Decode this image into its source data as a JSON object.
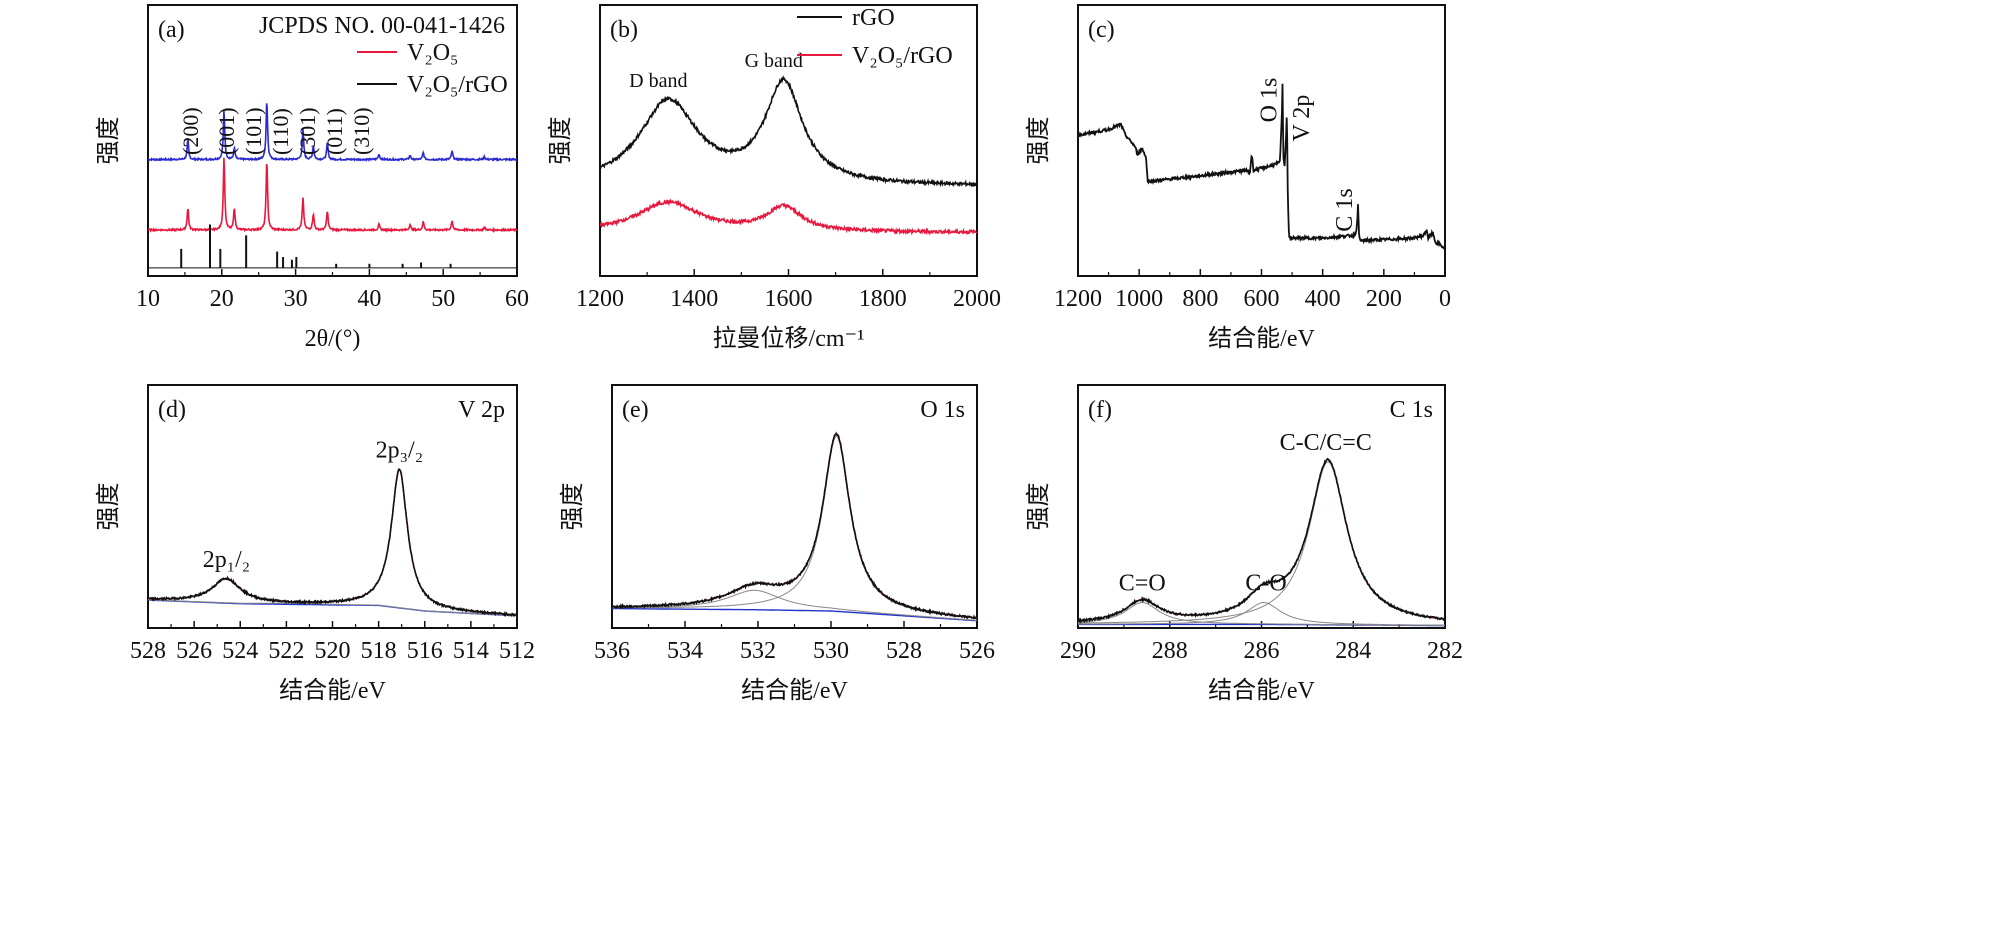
{
  "chart_data": [
    {
      "id": "a",
      "type": "line",
      "panel_label": "(a)",
      "xlabel": "2θ/(°)",
      "ylabel": "强度",
      "xlim": [
        10,
        60
      ],
      "xticks": [
        "10",
        "20",
        "30",
        "40",
        "50",
        "60"
      ],
      "legend": {
        "title": "JCPDS NO. 00-041-1426",
        "entries": [
          {
            "name": "V₂O₅",
            "color": "#e8173d"
          },
          {
            "name": "V₂O₅/rGO",
            "color": "#111111"
          }
        ],
        "placement": "top-right"
      },
      "annotations": [
        "(200)",
        "(001)",
        "(101)",
        "(110)",
        "(301)",
        "(011)",
        "(310)"
      ],
      "annotation_x": [
        15.4,
        20.3,
        21.7,
        26.1,
        31.0,
        32.4,
        34.3
      ],
      "series": [
        {
          "color": "#2a2ad0",
          "baseline": 0.43,
          "peaks": [
            [
              15.4,
              0.07
            ],
            [
              20.3,
              0.18
            ],
            [
              21.7,
              0.04
            ],
            [
              26.1,
              0.22
            ],
            [
              31.0,
              0.11
            ],
            [
              32.4,
              0.05
            ],
            [
              34.3,
              0.06
            ],
            [
              41.3,
              0.02
            ],
            [
              45.5,
              0.015
            ],
            [
              47.3,
              0.025
            ],
            [
              51.2,
              0.03
            ],
            [
              55.6,
              0.01
            ]
          ]
        },
        {
          "color": "#e8173d",
          "baseline": 0.17,
          "peaks": [
            [
              15.4,
              0.08
            ],
            [
              20.3,
              0.27
            ],
            [
              21.7,
              0.08
            ],
            [
              26.1,
              0.26
            ],
            [
              31.0,
              0.12
            ],
            [
              32.4,
              0.06
            ],
            [
              34.3,
              0.07
            ],
            [
              41.3,
              0.02
            ],
            [
              45.5,
              0.02
            ],
            [
              47.3,
              0.03
            ],
            [
              51.2,
              0.035
            ],
            [
              55.6,
              0.01
            ]
          ]
        },
        {
          "color": "#111111",
          "style": "sticks",
          "baseline": 0.03,
          "peaks": [
            [
              14.5,
              0.07
            ],
            [
              18.4,
              0.16
            ],
            [
              19.8,
              0.07
            ],
            [
              23.3,
              0.12
            ],
            [
              27.5,
              0.06
            ],
            [
              28.3,
              0.04
            ],
            [
              29.5,
              0.03
            ],
            [
              30.1,
              0.04
            ],
            [
              35.5,
              0.015
            ],
            [
              40.0,
              0.015
            ],
            [
              44.5,
              0.015
            ],
            [
              47.0,
              0.02
            ],
            [
              51.0,
              0.015
            ]
          ]
        }
      ]
    },
    {
      "id": "b",
      "type": "line",
      "panel_label": "(b)",
      "xlabel": "拉曼位移/cm⁻¹",
      "ylabel": "强度",
      "xlim": [
        1200,
        2000
      ],
      "xticks": [
        "1200",
        "1400",
        "1600",
        "1800",
        "2000"
      ],
      "legend": {
        "entries": [
          {
            "name": "rGO",
            "color": "#111111"
          },
          {
            "name": "V₂O₅/rGO",
            "color": "#e8173d"
          }
        ],
        "placement": "top-right"
      },
      "annotations": [
        "D band",
        "G band"
      ],
      "annotation_x": [
        1345,
        1590
      ],
      "series": [
        {
          "name": "rGO",
          "color": "#111111",
          "baseline": 0.33,
          "peaks": [
            [
              1345,
              0.31,
              75
            ],
            [
              1590,
              0.37,
              48
            ]
          ],
          "slope": 0.0
        },
        {
          "name": "V₂O₅/rGO",
          "color": "#e8173d",
          "baseline": 0.16,
          "peaks": [
            [
              1345,
              0.11,
              80
            ],
            [
              1590,
              0.09,
              45
            ]
          ],
          "slope": 0.0
        }
      ]
    },
    {
      "id": "c",
      "type": "line",
      "panel_label": "(c)",
      "xlabel": "结合能/eV",
      "ylabel": "强度",
      "xlim": [
        1200,
        0
      ],
      "xticks": [
        "1200",
        "1000",
        "800",
        "600",
        "400",
        "200",
        "0"
      ],
      "annotations": [
        "O 1s",
        "V 2p",
        "C 1s"
      ],
      "annotation_x": [
        531,
        517,
        284
      ],
      "series": [
        {
          "color": "#111111",
          "points": [
            [
              1200,
              0.52
            ],
            [
              1100,
              0.54
            ],
            [
              1060,
              0.56
            ],
            [
              1045,
              0.52
            ],
            [
              1030,
              0.5
            ],
            [
              1015,
              0.48
            ],
            [
              1005,
              0.45
            ],
            [
              990,
              0.47
            ],
            [
              978,
              0.44
            ],
            [
              972,
              0.35
            ],
            [
              960,
              0.35
            ],
            [
              800,
              0.37
            ],
            [
              650,
              0.39
            ],
            [
              638,
              0.38
            ],
            [
              632,
              0.45
            ],
            [
              626,
              0.39
            ],
            [
              560,
              0.41
            ],
            [
              540,
              0.42
            ],
            [
              533,
              0.6
            ],
            [
              531,
              0.74
            ],
            [
              529,
              0.45
            ],
            [
              525,
              0.4
            ],
            [
              520,
              0.5
            ],
            [
              517,
              0.61
            ],
            [
              514,
              0.3
            ],
            [
              510,
              0.14
            ],
            [
              400,
              0.14
            ],
            [
              300,
              0.15
            ],
            [
              290,
              0.16
            ],
            [
              286,
              0.22
            ],
            [
              284,
              0.29
            ],
            [
              282,
              0.16
            ],
            [
              278,
              0.13
            ],
            [
              100,
              0.14
            ],
            [
              70,
              0.15
            ],
            [
              60,
              0.17
            ],
            [
              55,
              0.14
            ],
            [
              40,
              0.16
            ],
            [
              30,
              0.12
            ],
            [
              20,
              0.12
            ],
            [
              0,
              0.1
            ]
          ]
        }
      ]
    },
    {
      "id": "d",
      "type": "line",
      "panel_label": "(d)",
      "title": "V 2p",
      "xlabel": "结合能/eV",
      "ylabel": "强度",
      "xlim": [
        528,
        512
      ],
      "xticks": [
        "528",
        "526",
        "524",
        "522",
        "520",
        "518",
        "516",
        "514",
        "512"
      ],
      "annotations": [
        "2p₁/₂",
        "2p₃/₂"
      ],
      "annotation_x": [
        524.6,
        517.1
      ],
      "background": [
        [
          528,
          0.115
        ],
        [
          524,
          0.1
        ],
        [
          520,
          0.095
        ],
        [
          518,
          0.093
        ],
        [
          516,
          0.07
        ],
        [
          512,
          0.05
        ]
      ],
      "peaks": [
        [
          524.6,
          0.1,
          0.75
        ],
        [
          517.1,
          0.57,
          0.42
        ]
      ],
      "colors": {
        "data": "#111111",
        "fit": "#888888",
        "background": "#2233cc",
        "envelope": "#e8173d"
      }
    },
    {
      "id": "e",
      "type": "line",
      "panel_label": "(e)",
      "title": "O 1s",
      "xlabel": "结合能/eV",
      "ylabel": "强度",
      "xlim": [
        536,
        526
      ],
      "xticks": [
        "536",
        "534",
        "532",
        "530",
        "528",
        "526"
      ],
      "background": [
        [
          536,
          0.08
        ],
        [
          532,
          0.075
        ],
        [
          530,
          0.07
        ],
        [
          526,
          0.03
        ]
      ],
      "peaks": [
        [
          529.85,
          0.72,
          0.45
        ],
        [
          532.1,
          0.08,
          0.9
        ]
      ],
      "colors": {
        "data": "#111111",
        "fit": "#888888",
        "background": "#2233cc",
        "envelope": "#e8173d"
      }
    },
    {
      "id": "f",
      "type": "line",
      "panel_label": "(f)",
      "title": "C 1s",
      "xlabel": "结合能/eV",
      "ylabel": "强度",
      "xlim": [
        290,
        282
      ],
      "xticks": [
        "290",
        "288",
        "286",
        "284",
        "282"
      ],
      "annotations": [
        "C=O",
        "C-O",
        "C-C/C=C"
      ],
      "annotation_x": [
        288.6,
        285.9,
        284.6
      ],
      "background": [
        [
          290,
          0.015
        ],
        [
          286,
          0.015
        ],
        [
          282,
          0.01
        ]
      ],
      "peaks": [
        [
          284.55,
          0.67,
          0.5
        ],
        [
          285.95,
          0.09,
          0.45
        ],
        [
          288.6,
          0.09,
          0.45
        ]
      ],
      "colors": {
        "data": "#111111",
        "fit": "#888888",
        "background": "#2233cc",
        "envelope": "#e8173d"
      }
    }
  ]
}
